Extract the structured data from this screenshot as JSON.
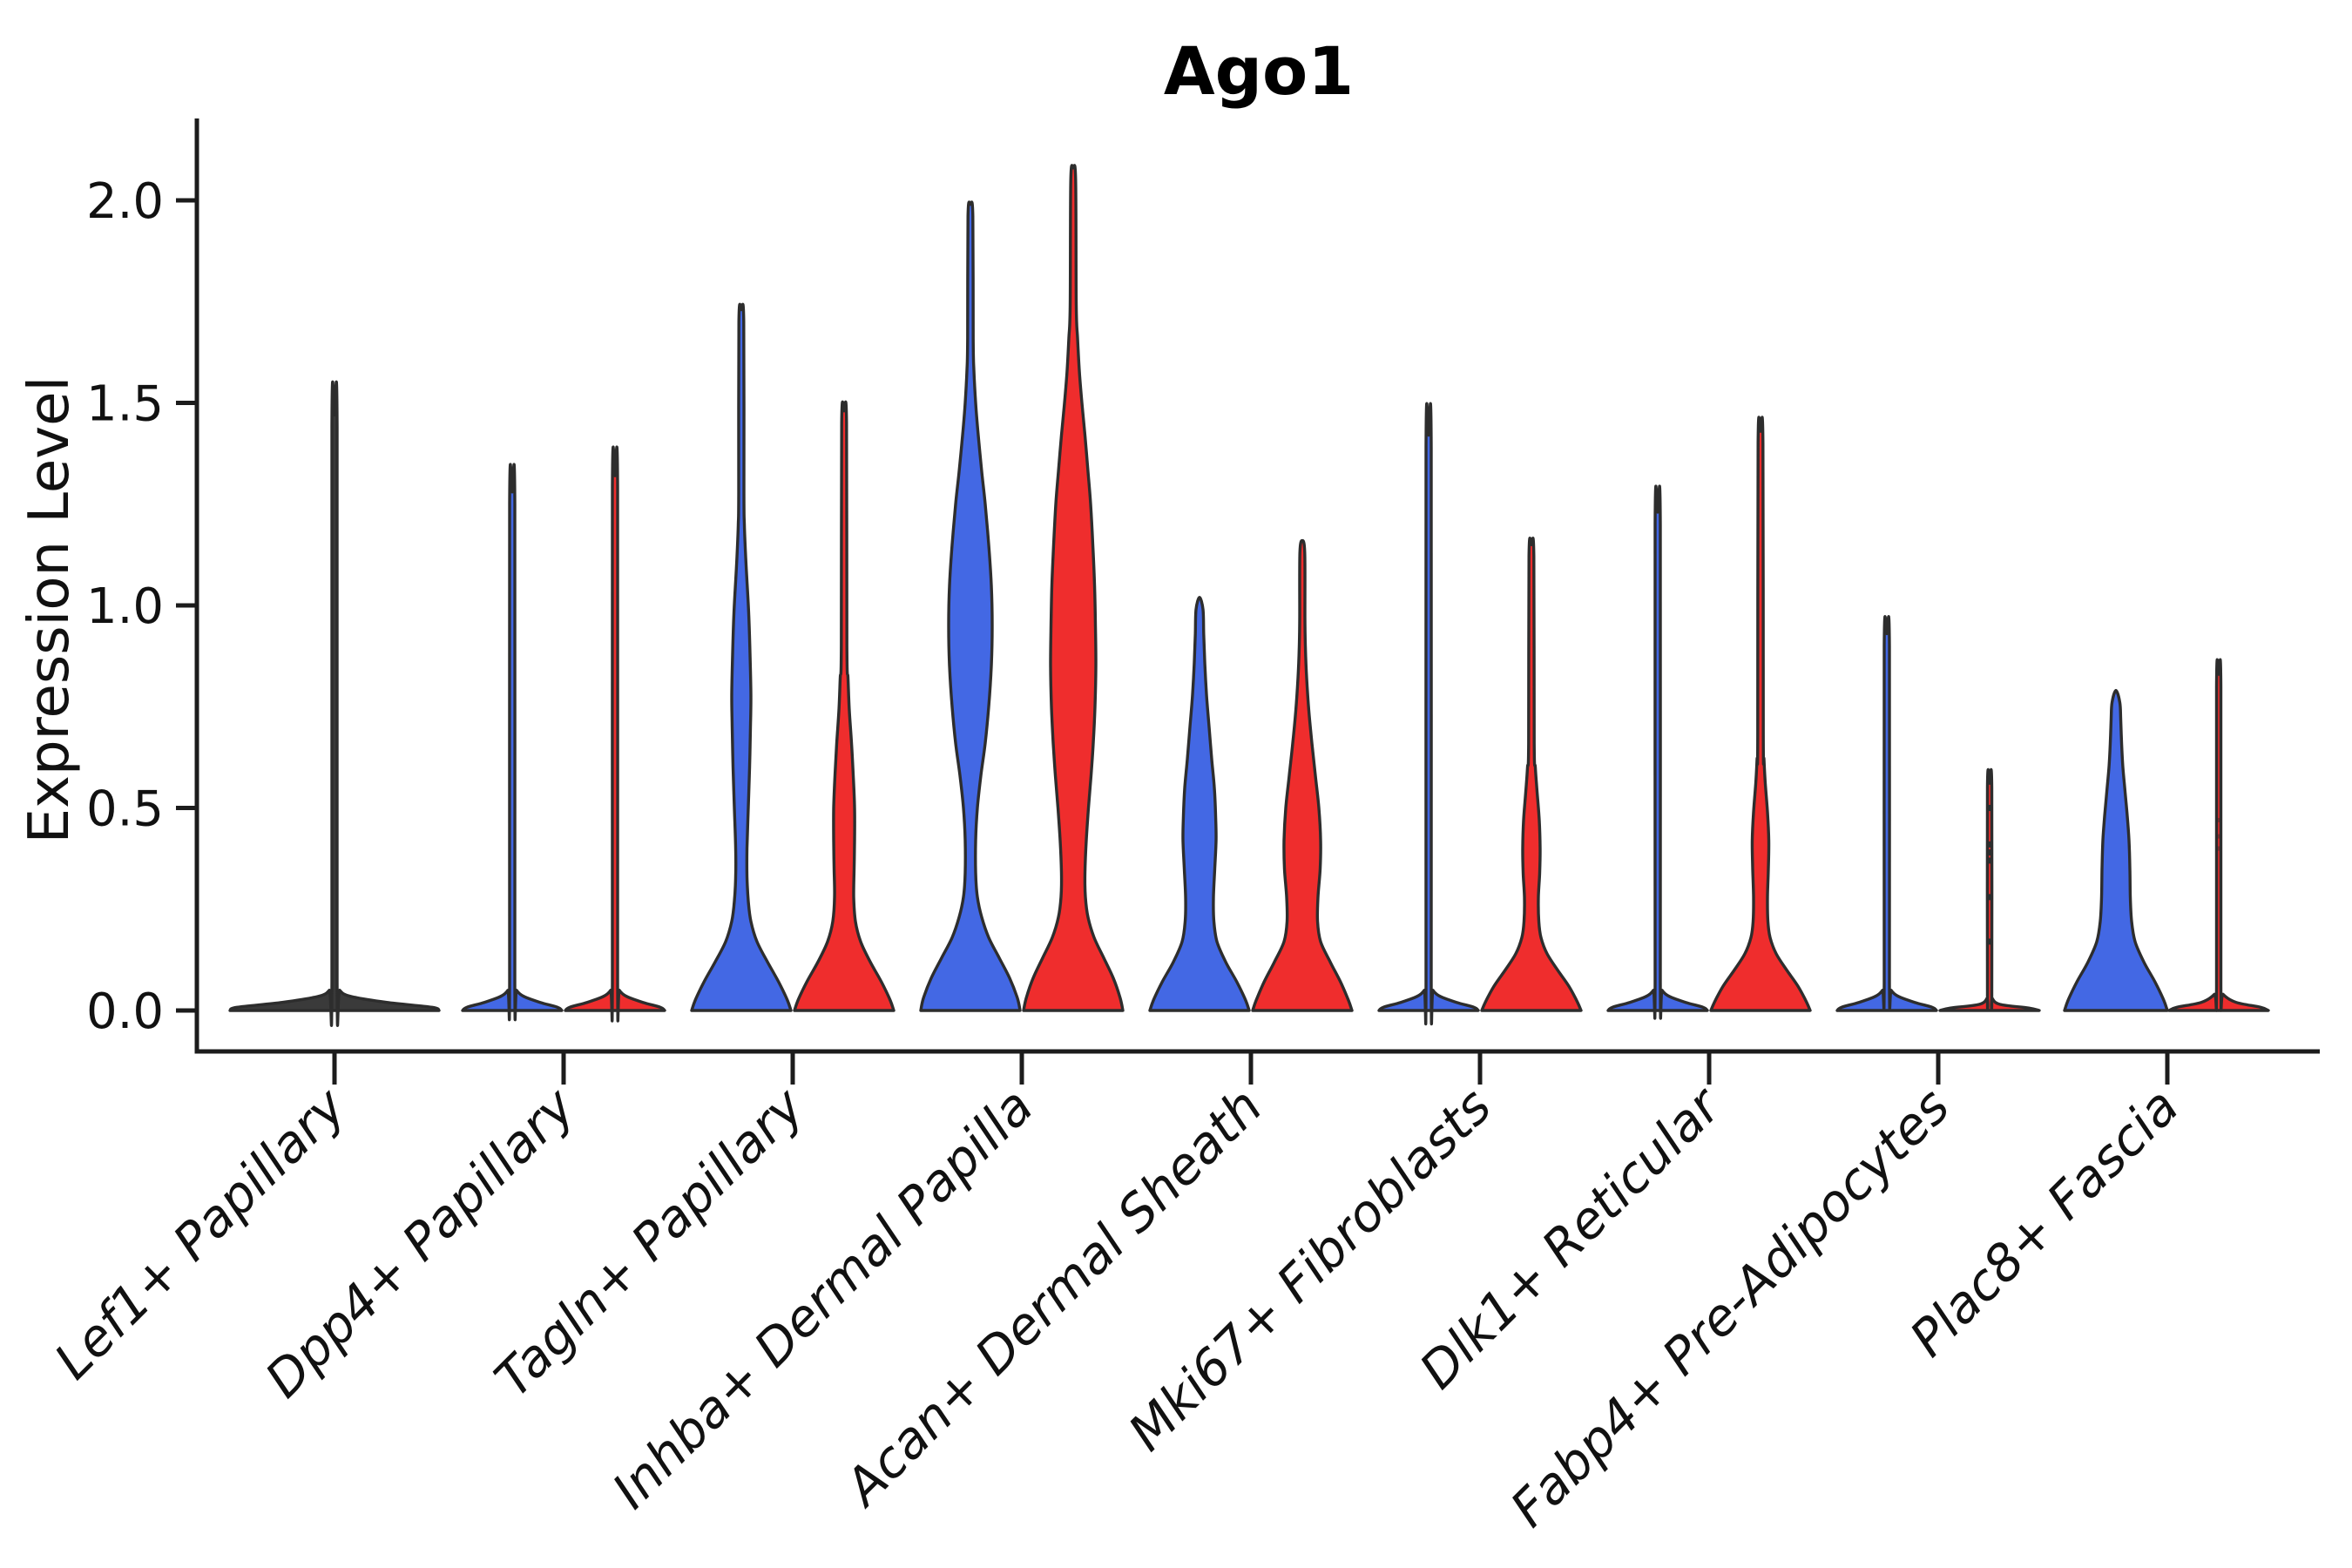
{
  "chart_data": {
    "type": "violin",
    "title": "Ago1",
    "xlabel": "",
    "ylabel": "Expression Level",
    "y_ticks": [
      0.0,
      0.5,
      1.0,
      1.5,
      2.0
    ],
    "y_tick_labels": [
      "0.0",
      "0.5",
      "1.0",
      "1.5",
      "2.0"
    ],
    "ylim": [
      -0.1,
      2.2
    ],
    "grid": false,
    "legend": "none",
    "categories": [
      "Lef1+ Papillary",
      "Dpp4+ Papillary",
      "Tagln+ Papillary",
      "Inhba+ Dermal Papilla",
      "Acan+ Dermal Sheath",
      "Mki67+ Fibroblasts",
      "Dlk1+ Reticular",
      "Fabp4+ Pre-Adipocytes",
      "Plac8+ Fascia"
    ],
    "series_colors": {
      "blue": "#4368E4",
      "red": "#EF2D2D",
      "single": "#3A3A3A"
    },
    "edge_color": "#2D2D2D",
    "violins": [
      {
        "cat": 0,
        "group": "single",
        "max": 1.47,
        "profile": [
          [
            0,
            120
          ],
          [
            0.008,
            112
          ],
          [
            0.02,
            60
          ],
          [
            0.035,
            18
          ],
          [
            0.05,
            6
          ],
          [
            0.07,
            3
          ],
          [
            1.44,
            3
          ],
          [
            1.47,
            0
          ]
        ]
      },
      {
        "cat": 1,
        "group": "blue",
        "max": 1.28,
        "profile": [
          [
            0,
            57
          ],
          [
            0.008,
            52
          ],
          [
            0.02,
            32
          ],
          [
            0.035,
            13
          ],
          [
            0.05,
            5
          ],
          [
            0.07,
            3
          ],
          [
            1.25,
            3
          ],
          [
            1.28,
            0
          ]
        ]
      },
      {
        "cat": 1,
        "group": "red",
        "max": 1.32,
        "profile": [
          [
            0,
            57
          ],
          [
            0.008,
            52
          ],
          [
            0.02,
            32
          ],
          [
            0.035,
            13
          ],
          [
            0.05,
            5
          ],
          [
            0.07,
            3
          ],
          [
            1.29,
            3
          ],
          [
            1.32,
            0
          ]
        ]
      },
      {
        "cat": 2,
        "group": "blue",
        "max": 1.73,
        "profile": [
          [
            0,
            57
          ],
          [
            0.025,
            53
          ],
          [
            0.07,
            43
          ],
          [
            0.12,
            30
          ],
          [
            0.17,
            18
          ],
          [
            0.22,
            11
          ],
          [
            0.27,
            8
          ],
          [
            0.33,
            6.5
          ],
          [
            0.4,
            6.5
          ],
          [
            0.5,
            8
          ],
          [
            0.6,
            9.5
          ],
          [
            0.7,
            10.5
          ],
          [
            0.78,
            11
          ],
          [
            0.88,
            10
          ],
          [
            0.98,
            8.5
          ],
          [
            1.06,
            6.5
          ],
          [
            1.12,
            5
          ],
          [
            1.2,
            3.5
          ],
          [
            1.28,
            3
          ],
          [
            1.7,
            2.8
          ],
          [
            1.73,
            0
          ]
        ]
      },
      {
        "cat": 2,
        "group": "red",
        "max": 1.48,
        "profile": [
          [
            0,
            57
          ],
          [
            0.025,
            53
          ],
          [
            0.07,
            43
          ],
          [
            0.12,
            30
          ],
          [
            0.17,
            19
          ],
          [
            0.22,
            13
          ],
          [
            0.28,
            11
          ],
          [
            0.35,
            11.5
          ],
          [
            0.42,
            12
          ],
          [
            0.5,
            12
          ],
          [
            0.58,
            10.5
          ],
          [
            0.66,
            8.5
          ],
          [
            0.74,
            6
          ],
          [
            0.82,
            4.5
          ],
          [
            0.9,
            3.2
          ],
          [
            1.45,
            2.8
          ],
          [
            1.48,
            0
          ]
        ]
      },
      {
        "cat": 3,
        "group": "blue",
        "max": 1.99,
        "profile": [
          [
            0,
            57
          ],
          [
            0.03,
            54
          ],
          [
            0.08,
            45
          ],
          [
            0.13,
            33
          ],
          [
            0.18,
            21
          ],
          [
            0.23,
            13
          ],
          [
            0.28,
            8
          ],
          [
            0.34,
            6
          ],
          [
            0.42,
            6
          ],
          [
            0.5,
            8
          ],
          [
            0.58,
            12
          ],
          [
            0.66,
            17
          ],
          [
            0.75,
            21
          ],
          [
            0.85,
            24
          ],
          [
            0.95,
            25
          ],
          [
            1.05,
            24
          ],
          [
            1.15,
            21
          ],
          [
            1.25,
            17
          ],
          [
            1.33,
            13
          ],
          [
            1.42,
            9
          ],
          [
            1.5,
            6
          ],
          [
            1.58,
            4
          ],
          [
            1.66,
            3.2
          ],
          [
            1.96,
            2.8
          ],
          [
            1.99,
            0
          ]
        ]
      },
      {
        "cat": 3,
        "group": "red",
        "max": 2.08,
        "profile": [
          [
            0,
            57
          ],
          [
            0.03,
            54
          ],
          [
            0.08,
            46
          ],
          [
            0.13,
            35
          ],
          [
            0.18,
            24
          ],
          [
            0.23,
            17
          ],
          [
            0.28,
            14
          ],
          [
            0.34,
            13.5
          ],
          [
            0.42,
            15
          ],
          [
            0.5,
            17.5
          ],
          [
            0.58,
            20.5
          ],
          [
            0.66,
            23
          ],
          [
            0.75,
            25
          ],
          [
            0.85,
            26
          ],
          [
            0.95,
            25.5
          ],
          [
            1.05,
            24.5
          ],
          [
            1.15,
            22.5
          ],
          [
            1.25,
            20
          ],
          [
            1.33,
            17
          ],
          [
            1.42,
            13.5
          ],
          [
            1.5,
            10
          ],
          [
            1.58,
            7
          ],
          [
            1.66,
            5
          ],
          [
            1.74,
            3.5
          ],
          [
            2.05,
            2.8
          ],
          [
            2.08,
            0
          ]
        ]
      },
      {
        "cat": 4,
        "group": "blue",
        "max": 1.02,
        "profile": [
          [
            0,
            57
          ],
          [
            0.025,
            53
          ],
          [
            0.07,
            43
          ],
          [
            0.12,
            30
          ],
          [
            0.17,
            20
          ],
          [
            0.22,
            16.5
          ],
          [
            0.28,
            16
          ],
          [
            0.35,
            17.5
          ],
          [
            0.42,
            19
          ],
          [
            0.48,
            18.5
          ],
          [
            0.55,
            17
          ],
          [
            0.62,
            14
          ],
          [
            0.7,
            11
          ],
          [
            0.78,
            8
          ],
          [
            0.86,
            6
          ],
          [
            0.93,
            4.8
          ],
          [
            0.99,
            4
          ],
          [
            1.02,
            0
          ]
        ]
      },
      {
        "cat": 4,
        "group": "red",
        "max": 1.16,
        "profile": [
          [
            0,
            57
          ],
          [
            0.025,
            53
          ],
          [
            0.07,
            44
          ],
          [
            0.12,
            32
          ],
          [
            0.17,
            21
          ],
          [
            0.22,
            17.5
          ],
          [
            0.28,
            18
          ],
          [
            0.35,
            20.5
          ],
          [
            0.42,
            21
          ],
          [
            0.5,
            19
          ],
          [
            0.58,
            15
          ],
          [
            0.66,
            11
          ],
          [
            0.74,
            7.5
          ],
          [
            0.82,
            5
          ],
          [
            0.9,
            3.5
          ],
          [
            0.97,
            3
          ],
          [
            1.13,
            2.8
          ],
          [
            1.16,
            0
          ]
        ]
      },
      {
        "cat": 5,
        "group": "blue",
        "max": 1.42,
        "profile": [
          [
            0,
            57
          ],
          [
            0.008,
            52
          ],
          [
            0.02,
            32
          ],
          [
            0.035,
            13
          ],
          [
            0.05,
            5
          ],
          [
            0.07,
            3
          ],
          [
            1.39,
            3
          ],
          [
            1.42,
            0
          ]
        ]
      },
      {
        "cat": 5,
        "group": "red",
        "max": 1.15,
        "profile": [
          [
            0,
            57
          ],
          [
            0.02,
            53
          ],
          [
            0.06,
            43
          ],
          [
            0.1,
            30
          ],
          [
            0.14,
            18
          ],
          [
            0.18,
            11
          ],
          [
            0.22,
            8.5
          ],
          [
            0.28,
            8
          ],
          [
            0.34,
            9.5
          ],
          [
            0.4,
            10
          ],
          [
            0.47,
            9
          ],
          [
            0.54,
            6.5
          ],
          [
            0.6,
            4.5
          ],
          [
            0.66,
            3.2
          ],
          [
            1.12,
            2.8
          ],
          [
            1.15,
            0
          ]
        ]
      },
      {
        "cat": 6,
        "group": "blue",
        "max": 1.23,
        "profile": [
          [
            0,
            57
          ],
          [
            0.008,
            52
          ],
          [
            0.02,
            32
          ],
          [
            0.035,
            13
          ],
          [
            0.05,
            5
          ],
          [
            0.07,
            3
          ],
          [
            1.2,
            3
          ],
          [
            1.23,
            0
          ]
        ]
      },
      {
        "cat": 6,
        "group": "red",
        "max": 1.43,
        "profile": [
          [
            0,
            57
          ],
          [
            0.02,
            53
          ],
          [
            0.06,
            43
          ],
          [
            0.1,
            30
          ],
          [
            0.14,
            18
          ],
          [
            0.18,
            11
          ],
          [
            0.22,
            8.5
          ],
          [
            0.28,
            8
          ],
          [
            0.35,
            9
          ],
          [
            0.42,
            9.5
          ],
          [
            0.49,
            8
          ],
          [
            0.56,
            5.5
          ],
          [
            0.62,
            4
          ],
          [
            0.68,
            3.2
          ],
          [
            1.4,
            2.8
          ],
          [
            1.43,
            0
          ]
        ]
      },
      {
        "cat": 7,
        "group": "blue",
        "max": 0.93,
        "profile": [
          [
            0,
            57
          ],
          [
            0.008,
            52
          ],
          [
            0.02,
            32
          ],
          [
            0.035,
            13
          ],
          [
            0.05,
            5
          ],
          [
            0.07,
            3
          ],
          [
            0.9,
            3
          ],
          [
            0.93,
            0
          ]
        ]
      },
      {
        "cat": 7,
        "group": "red",
        "max": 0.57,
        "profile": [
          [
            0,
            57
          ],
          [
            0.006,
            45
          ],
          [
            0.015,
            12
          ],
          [
            0.03,
            3
          ],
          [
            0.045,
            2.5
          ],
          [
            0.55,
            2.5
          ],
          [
            0.57,
            0
          ]
        ],
        "dots": [
          0.565,
          0.5,
          0.41,
          0.39,
          0.37,
          0.28,
          0.17
        ]
      },
      {
        "cat": 8,
        "group": "blue",
        "max": 0.79,
        "profile": [
          [
            0,
            59
          ],
          [
            0.025,
            55
          ],
          [
            0.07,
            45
          ],
          [
            0.12,
            32
          ],
          [
            0.17,
            22
          ],
          [
            0.22,
            18
          ],
          [
            0.28,
            16.5
          ],
          [
            0.35,
            16
          ],
          [
            0.42,
            15
          ],
          [
            0.48,
            13
          ],
          [
            0.54,
            10.5
          ],
          [
            0.6,
            8
          ],
          [
            0.66,
            6.5
          ],
          [
            0.72,
            5.5
          ],
          [
            0.76,
            4.5
          ],
          [
            0.79,
            0
          ]
        ]
      },
      {
        "cat": 8,
        "group": "red",
        "max": 0.83,
        "profile": [
          [
            0,
            57
          ],
          [
            0.008,
            48
          ],
          [
            0.02,
            20
          ],
          [
            0.04,
            5
          ],
          [
            0.06,
            2.5
          ],
          [
            0.8,
            2.5
          ],
          [
            0.83,
            0
          ]
        ],
        "dots_faint": [
          0.47,
          0.43,
          0.4
        ]
      }
    ]
  }
}
